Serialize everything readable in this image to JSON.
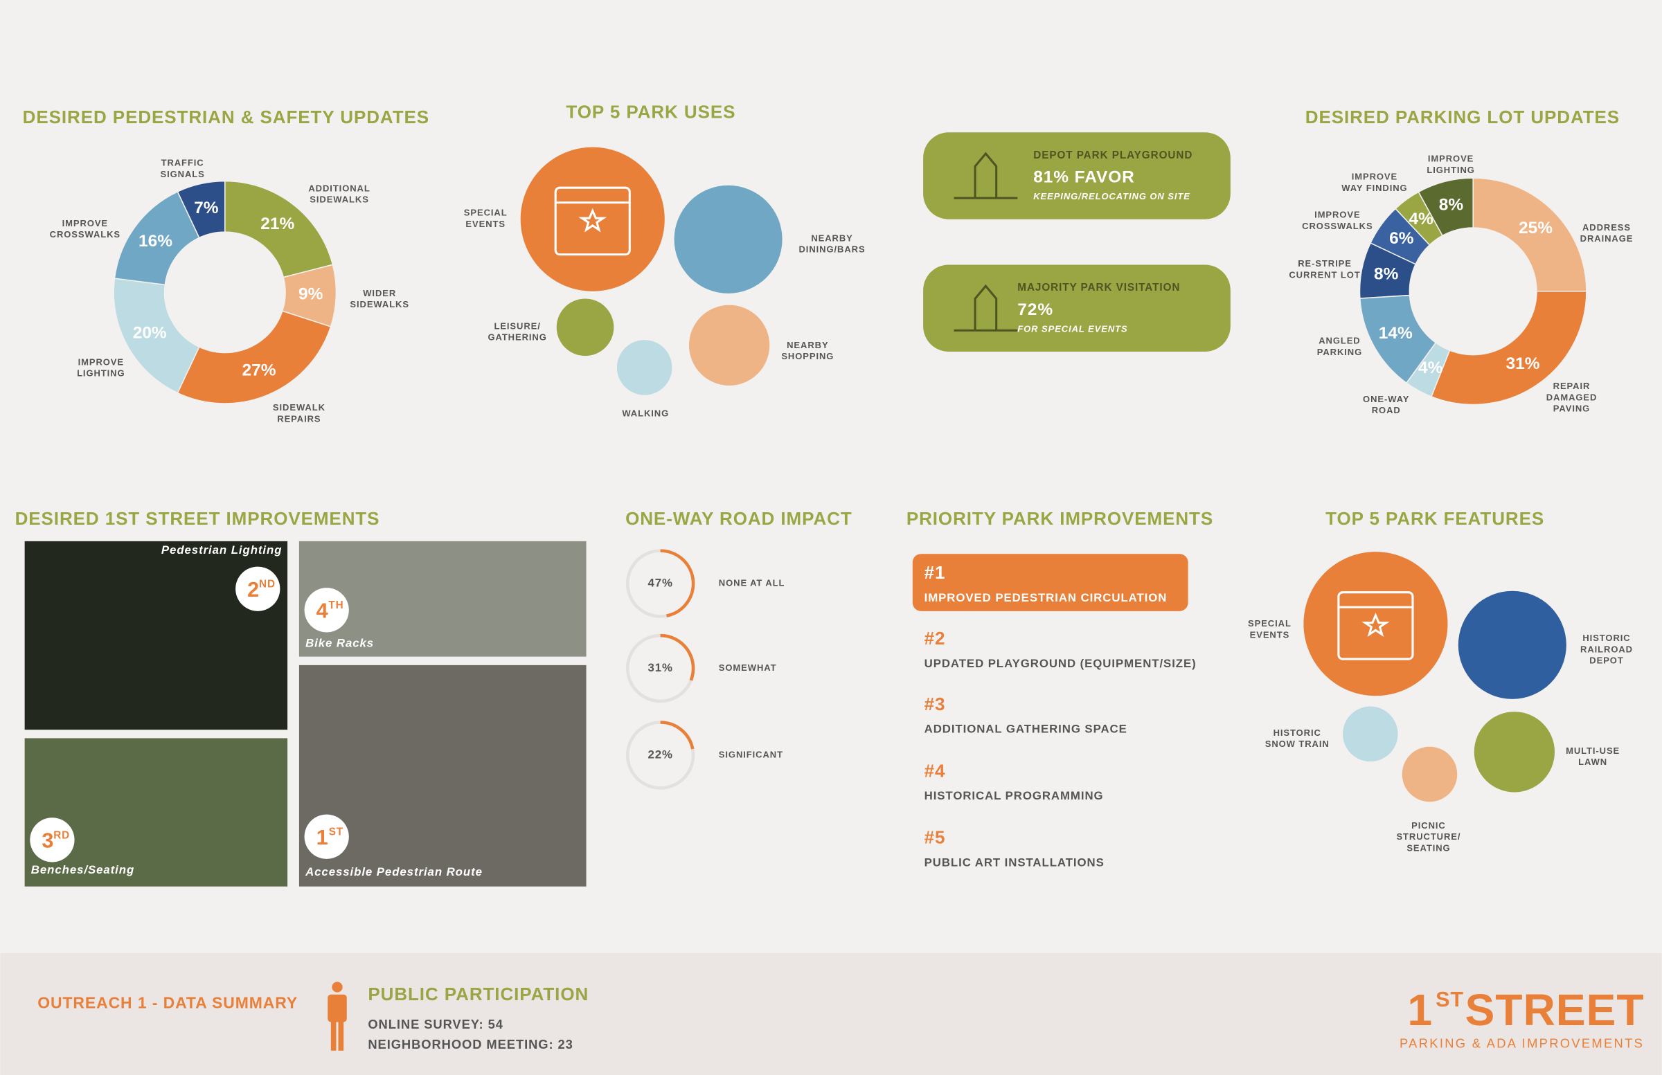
{
  "chart_data": [
    {
      "type": "pie",
      "title": "DESIRED PEDESTRIAN & SAFETY UPDATES",
      "categories": [
        "ADDITIONAL\nSIDEWALKS",
        "WIDER\nSIDEWALKS",
        "SIDEWALK\nREPAIRS",
        "IMPROVE\nLIGHTING",
        "IMPROVE\nCROSSWALKS",
        "TRAFFIC\nSIGNALS"
      ],
      "values": [
        21,
        9,
        27,
        20,
        16,
        7
      ],
      "value_labels": [
        "21%",
        "9%",
        "27%",
        "20%",
        "16%",
        "7%"
      ],
      "colors": [
        "#9aa544",
        "#efb486",
        "#e8803a",
        "#bcdbe3",
        "#6fa7c5",
        "#2c4f8a"
      ]
    },
    {
      "type": "pie",
      "title": "DESIRED PARKING LOT UPDATES",
      "categories": [
        "ADDRESS\nDRAINAGE",
        "REPAIR\nDAMAGED\nPAVING",
        "ONE-WAY\nROAD",
        "ANGLED\nPARKING",
        "RE-STRIPE\nCURRENT LOT",
        "IMPROVE\nCROSSWALKS",
        "IMPROVE\nWAY FINDING",
        "IMPROVE\nLIGHTING"
      ],
      "values": [
        25,
        31,
        4,
        14,
        8,
        6,
        4,
        8
      ],
      "value_labels": [
        "25%",
        "31%",
        "4%",
        "14%",
        "8%",
        "6%",
        "4%",
        "8%"
      ],
      "colors": [
        "#efb486",
        "#e8803a",
        "#bcdbe3",
        "#6fa7c5",
        "#2c4f8a",
        "#3a62a0",
        "#9aa544",
        "#5b6a2e"
      ]
    },
    {
      "type": "progress",
      "title": "ONE-WAY ROAD IMPACT",
      "categories": [
        "NONE AT ALL",
        "SOMEWHAT",
        "SIGNIFICANT"
      ],
      "values": [
        47,
        31,
        22
      ],
      "value_labels": [
        "47%",
        "31%",
        "22%"
      ],
      "color": "#e8803a"
    }
  ],
  "park_uses": {
    "title": "TOP 5 PARK USES",
    "items": [
      {
        "label": "SPECIAL\nEVENTS",
        "color": "#e8803a"
      },
      {
        "label": "NEARBY\nDINING/BARS",
        "color": "#6fa7c5"
      },
      {
        "label": "LEISURE/\nGATHERING",
        "color": "#9aa544"
      },
      {
        "label": "WALKING",
        "color": "#bcdbe3"
      },
      {
        "label": "NEARBY\nSHOPPING",
        "color": "#efb486"
      }
    ]
  },
  "callouts": [
    {
      "title": "DEPOT PARK PLAYGROUND",
      "value": "81% FAVOR",
      "note": "KEEPING/RELOCATING ON SITE"
    },
    {
      "title": "MAJORITY PARK VISITATION",
      "value": "72%",
      "note": "FOR SPECIAL EVENTS"
    }
  ],
  "street_improvements": {
    "title": "DESIRED 1ST STREET IMPROVEMENTS",
    "photos": [
      {
        "caption": "Pedestrian Lighting",
        "rank": "2",
        "suffix": "ND"
      },
      {
        "caption": "Bike Racks",
        "rank": "4",
        "suffix": "TH"
      },
      {
        "caption": "Benches/Seating",
        "rank": "3",
        "suffix": "RD"
      },
      {
        "caption": "Accessible Pedestrian Route",
        "rank": "1",
        "suffix": "ST"
      }
    ]
  },
  "priority": {
    "title": "PRIORITY PARK IMPROVEMENTS",
    "items": [
      {
        "rank": "#1",
        "label": "IMPROVED PEDESTRIAN CIRCULATION"
      },
      {
        "rank": "#2",
        "label": "UPDATED PLAYGROUND (EQUIPMENT/SIZE)"
      },
      {
        "rank": "#3",
        "label": "ADDITIONAL GATHERING SPACE"
      },
      {
        "rank": "#4",
        "label": "HISTORICAL PROGRAMMING"
      },
      {
        "rank": "#5",
        "label": "PUBLIC ART INSTALLATIONS"
      }
    ]
  },
  "park_features": {
    "title": "TOP 5 PARK FEATURES",
    "items": [
      {
        "label": "SPECIAL\nEVENTS",
        "color": "#e8803a"
      },
      {
        "label": "HISTORIC\nRAILROAD\nDEPOT",
        "color": "#2f5f9e"
      },
      {
        "label": "HISTORIC\nSNOW TRAIN",
        "color": "#bcdbe3"
      },
      {
        "label": "PICNIC\nSTRUCTURE/\nSEATING",
        "color": "#efb486"
      },
      {
        "label": "MULTI-USE\nLAWN",
        "color": "#9aa544"
      }
    ]
  },
  "footer": {
    "left": "OUTREACH 1 - DATA SUMMARY",
    "participation": {
      "title": "PUBLIC PARTICIPATION",
      "lines": [
        "ONLINE SURVEY: 54",
        "NEIGHBORHOOD MEETING: 23"
      ]
    },
    "brand": {
      "number": "1",
      "suffix": "ST",
      "name": "STREET",
      "tagline": "PARKING & ADA IMPROVEMENTS"
    }
  }
}
